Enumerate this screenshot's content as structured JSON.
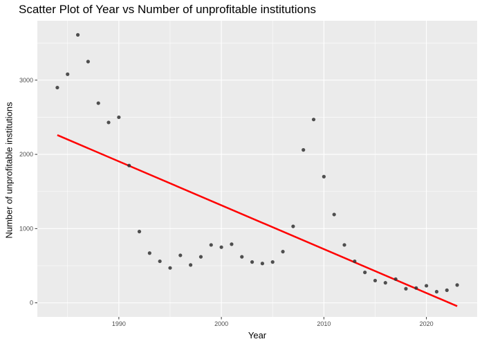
{
  "chart_data": {
    "type": "scatter",
    "title": "Scatter Plot of Year vs Number of unprofitable institutions",
    "xlabel": "Year",
    "ylabel": "Number of unprofitable institutions",
    "xlim": [
      1982.05,
      2024.95
    ],
    "ylim": [
      -190,
      3800
    ],
    "x_ticks": [
      1990,
      2000,
      2010,
      2020
    ],
    "y_ticks": [
      0,
      1000,
      2000,
      3000
    ],
    "grid": true,
    "legend": "none",
    "points": [
      {
        "x": 1984,
        "y": 2900
      },
      {
        "x": 1985,
        "y": 3080
      },
      {
        "x": 1986,
        "y": 3610
      },
      {
        "x": 1987,
        "y": 3250
      },
      {
        "x": 1988,
        "y": 2690
      },
      {
        "x": 1989,
        "y": 2430
      },
      {
        "x": 1990,
        "y": 2500
      },
      {
        "x": 1991,
        "y": 1850
      },
      {
        "x": 1992,
        "y": 960
      },
      {
        "x": 1993,
        "y": 670
      },
      {
        "x": 1994,
        "y": 560
      },
      {
        "x": 1995,
        "y": 470
      },
      {
        "x": 1996,
        "y": 640
      },
      {
        "x": 1997,
        "y": 510
      },
      {
        "x": 1998,
        "y": 620
      },
      {
        "x": 1999,
        "y": 780
      },
      {
        "x": 2000,
        "y": 750
      },
      {
        "x": 2001,
        "y": 790
      },
      {
        "x": 2002,
        "y": 620
      },
      {
        "x": 2003,
        "y": 550
      },
      {
        "x": 2004,
        "y": 530
      },
      {
        "x": 2005,
        "y": 550
      },
      {
        "x": 2006,
        "y": 690
      },
      {
        "x": 2007,
        "y": 1030
      },
      {
        "x": 2008,
        "y": 2060
      },
      {
        "x": 2009,
        "y": 2470
      },
      {
        "x": 2010,
        "y": 1700
      },
      {
        "x": 2011,
        "y": 1190
      },
      {
        "x": 2012,
        "y": 780
      },
      {
        "x": 2013,
        "y": 560
      },
      {
        "x": 2014,
        "y": 410
      },
      {
        "x": 2015,
        "y": 300
      },
      {
        "x": 2016,
        "y": 270
      },
      {
        "x": 2017,
        "y": 320
      },
      {
        "x": 2018,
        "y": 190
      },
      {
        "x": 2019,
        "y": 200
      },
      {
        "x": 2020,
        "y": 230
      },
      {
        "x": 2021,
        "y": 150
      },
      {
        "x": 2022,
        "y": 170
      },
      {
        "x": 2023,
        "y": 240
      }
    ],
    "trend_line": {
      "x": [
        1984,
        2023
      ],
      "y": [
        2260,
        -45
      ]
    },
    "colors": {
      "panel_background": "#ebebeb",
      "grid_major": "#ffffff",
      "point": "#333333",
      "trend_line": "#ff0000",
      "tick_text": "#4d4d4d",
      "tick_mark": "#333333"
    }
  }
}
